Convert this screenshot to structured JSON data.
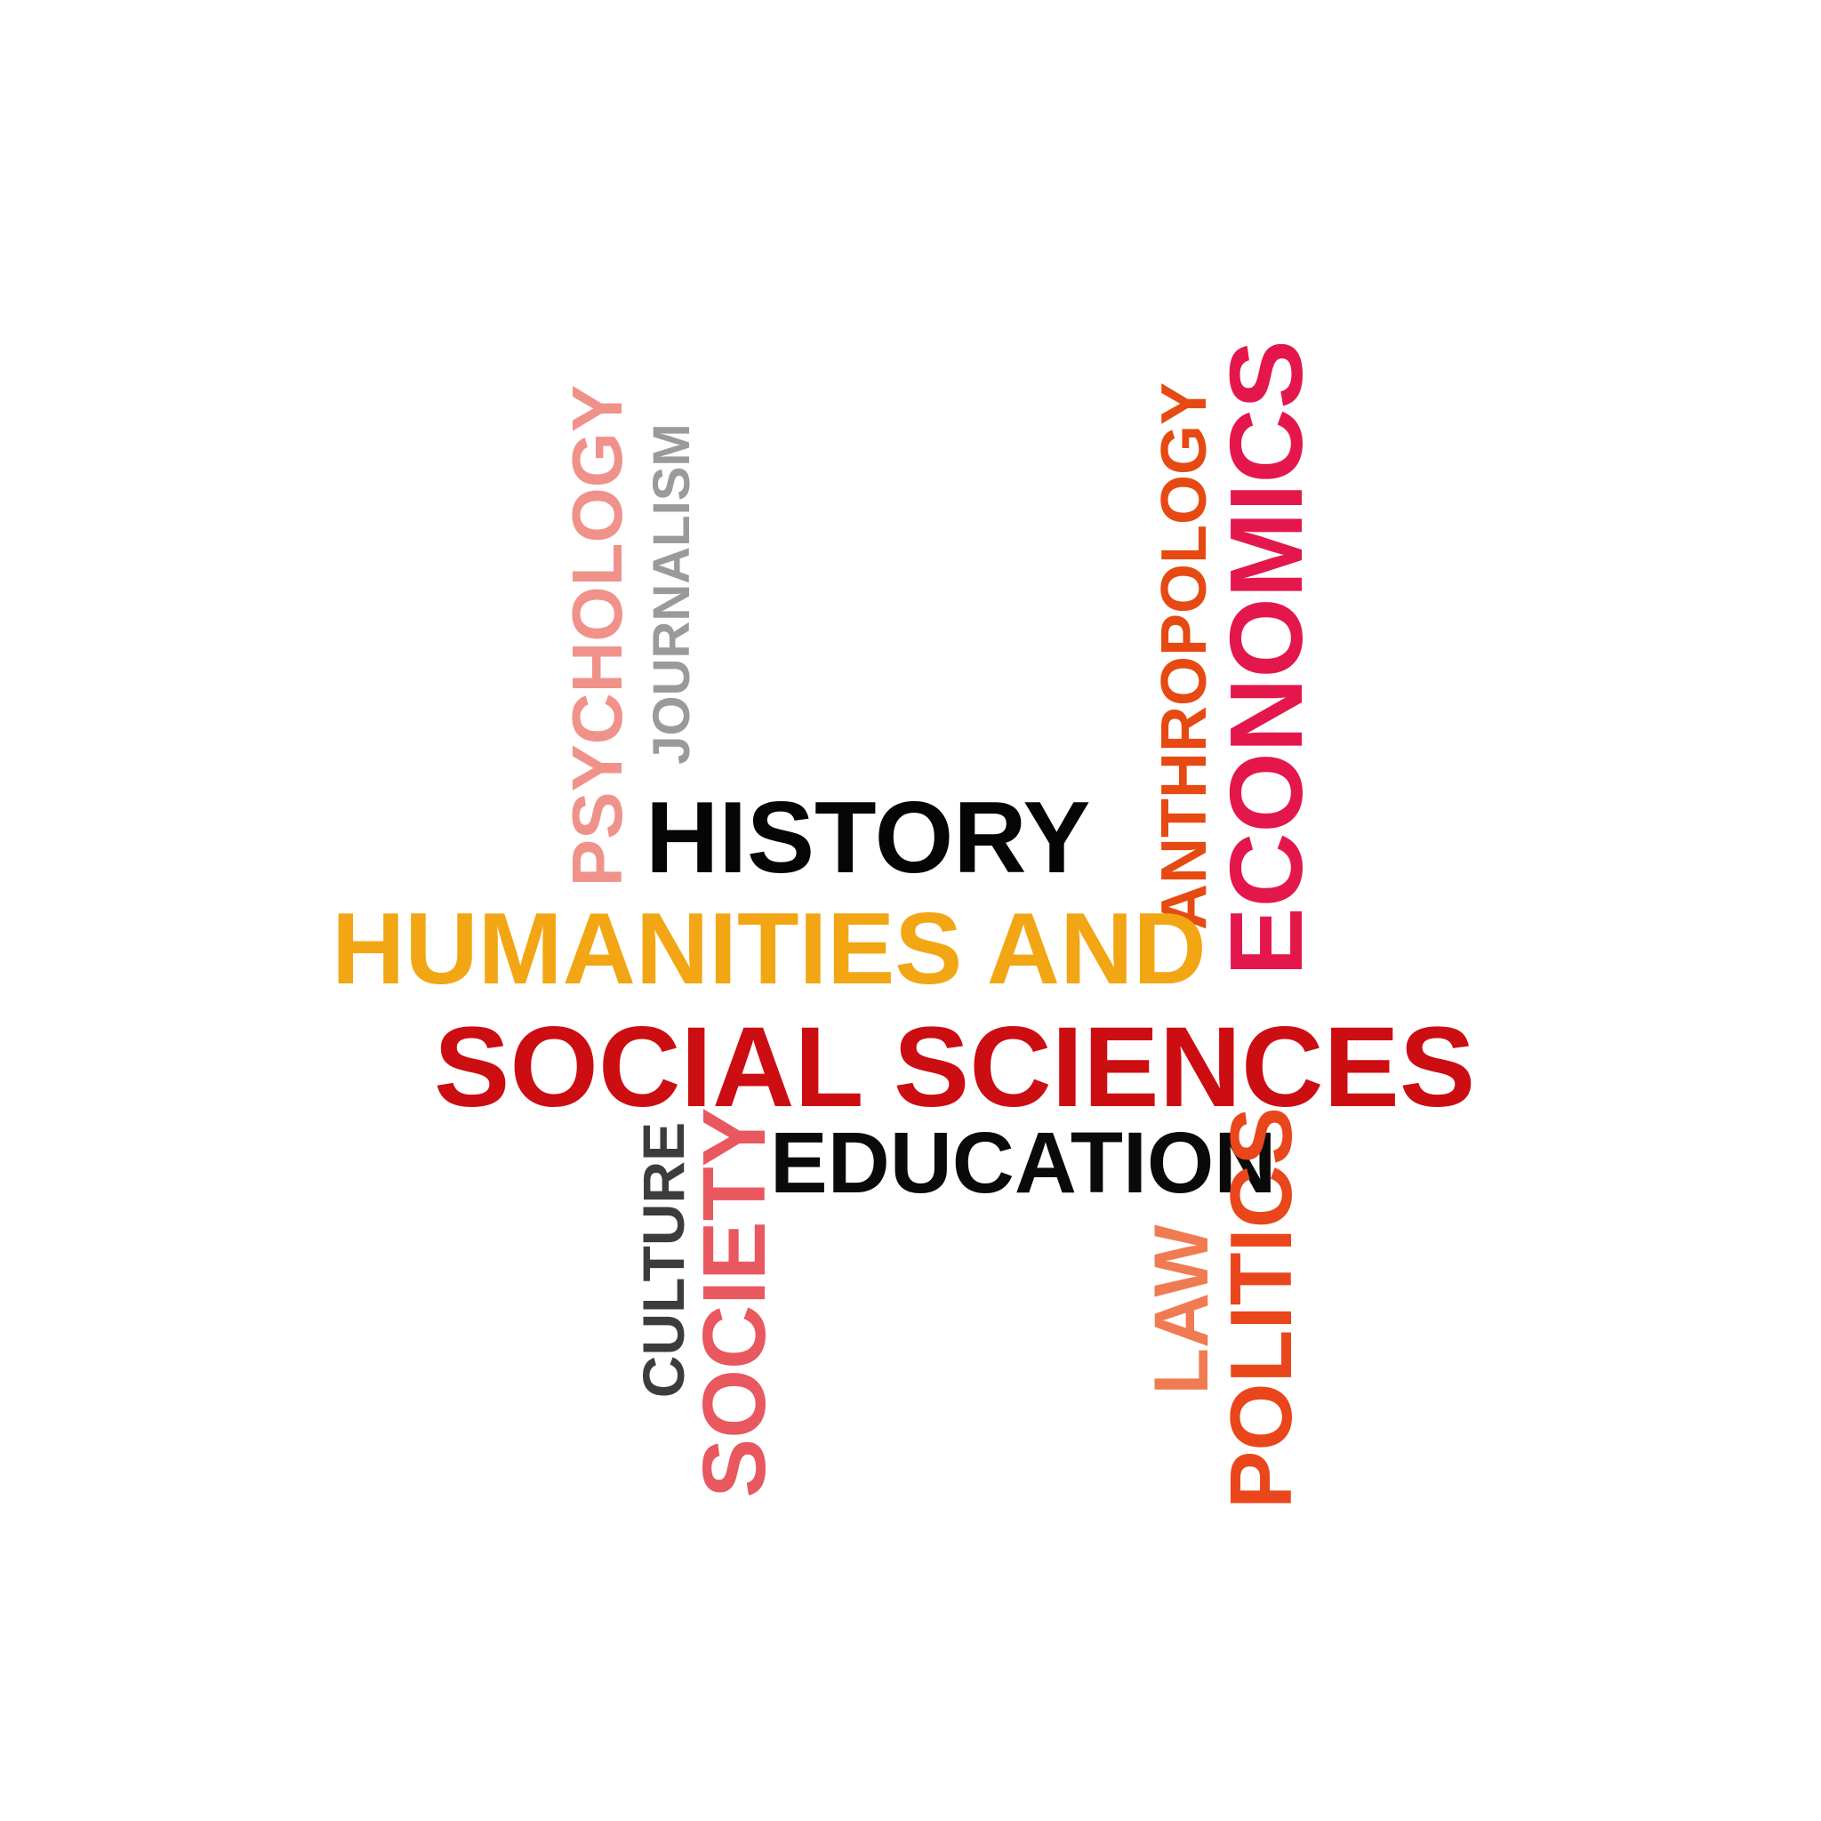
{
  "words": {
    "history": "HISTORY",
    "humanities_and": "HUMANITIES AND",
    "social_sciences": "SOCIAL SCIENCES",
    "education": "EDUCATION",
    "psychology": "PSYCHOLOGY",
    "journalism": "JOURNALISM",
    "anthropology": "ANTHROPOLOGY",
    "economics": "ECONOMICS",
    "culture": "CULTURE",
    "society": "SOCIETY",
    "law": "LAW",
    "politics": "POLITICS"
  },
  "colors": {
    "background": "#ffffff",
    "history": "#050505",
    "humanities_and": "#f2a614",
    "social_sciences": "#cc0d12",
    "education": "#0a0a0a",
    "psychology": "#f0928a",
    "journalism": "#9a9a9a",
    "anthropology": "#e64a12",
    "economics": "#e4174c",
    "culture": "#3c3c3c",
    "society": "#e8585e",
    "law": "#f07b52",
    "politics": "#e9461b"
  }
}
